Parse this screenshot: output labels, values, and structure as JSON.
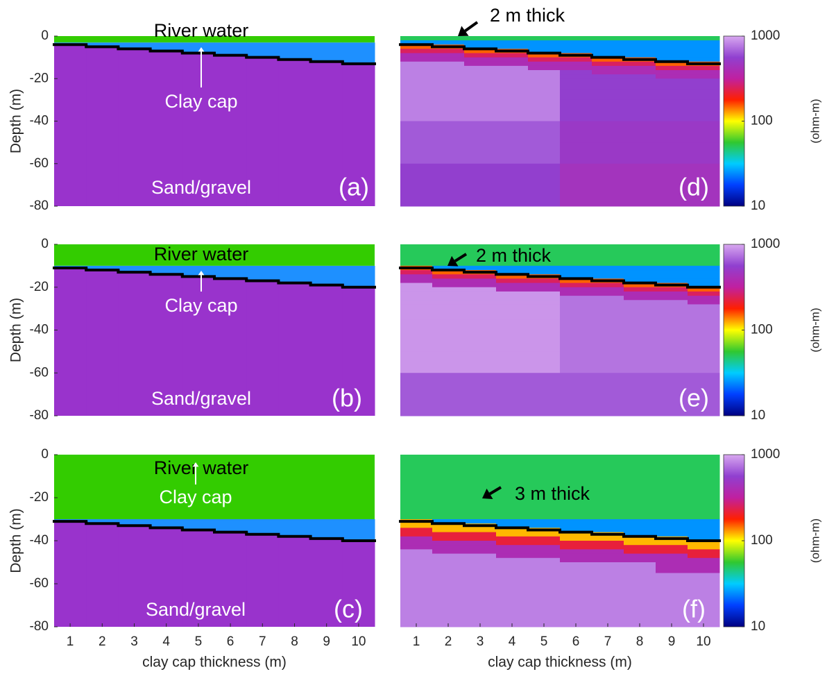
{
  "chart_data": [
    {
      "type": "section",
      "label": "(a)",
      "x": [
        1,
        2,
        3,
        4,
        5,
        6,
        7,
        8,
        9,
        10
      ],
      "xlim": [
        0.5,
        10.5
      ],
      "ylim": [
        -80,
        0
      ],
      "yticks": [
        0,
        -20,
        -40,
        -60,
        -80
      ],
      "ylabel": "Depth (m)",
      "water_depth": -3,
      "clay_bottom": [
        -4,
        -5,
        -6,
        -7,
        -8,
        -9,
        -10,
        -11,
        -12,
        -13
      ],
      "layers": [
        {
          "name": "River water",
          "color": "#33cc00"
        },
        {
          "name": "Clay cap",
          "color": "#1e90ff"
        },
        {
          "name": "Sand/gravel",
          "color": "#9933cc"
        }
      ]
    },
    {
      "type": "section",
      "label": "(b)",
      "x": [
        1,
        2,
        3,
        4,
        5,
        6,
        7,
        8,
        9,
        10
      ],
      "xlim": [
        0.5,
        10.5
      ],
      "ylim": [
        -80,
        0
      ],
      "yticks": [
        0,
        -20,
        -40,
        -60,
        -80
      ],
      "ylabel": "Depth (m)",
      "water_depth": -10,
      "clay_bottom": [
        -11,
        -12,
        -13,
        -14,
        -15,
        -16,
        -17,
        -18,
        -19,
        -20
      ],
      "layers": [
        {
          "name": "River water",
          "color": "#33cc00"
        },
        {
          "name": "Clay cap",
          "color": "#1e90ff"
        },
        {
          "name": "Sand/gravel",
          "color": "#9933cc"
        }
      ]
    },
    {
      "type": "section",
      "label": "(c)",
      "x": [
        1,
        2,
        3,
        4,
        5,
        6,
        7,
        8,
        9,
        10
      ],
      "xlim": [
        0.5,
        10.5
      ],
      "ylim": [
        -80,
        0
      ],
      "yticks": [
        0,
        -20,
        -40,
        -60,
        -80
      ],
      "ylabel": "Depth (m)",
      "xticks": [
        1,
        2,
        3,
        4,
        5,
        6,
        7,
        8,
        9,
        10
      ],
      "xlabel": "clay cap thickness (m)",
      "water_depth": -30,
      "clay_bottom": [
        -31,
        -32,
        -33,
        -34,
        -35,
        -36,
        -37,
        -38,
        -39,
        -40
      ],
      "layers": [
        {
          "name": "River water",
          "color": "#33cc00"
        },
        {
          "name": "Clay cap",
          "color": "#1e90ff"
        },
        {
          "name": "Sand/gravel",
          "color": "#9933cc"
        }
      ]
    },
    {
      "type": "heatmap",
      "label": "(d)",
      "annotation": "2 m thick",
      "x": [
        1,
        2,
        3,
        4,
        5,
        6,
        7,
        8,
        9,
        10
      ],
      "xlim": [
        0.5,
        10.5
      ],
      "ylim": [
        -80,
        0
      ],
      "depth_bins": [
        0,
        -2,
        -4,
        -6,
        -8,
        -10,
        -12,
        -14,
        -16,
        -18,
        -20,
        -25,
        -30,
        -40,
        -50,
        -60,
        -70,
        -80
      ],
      "values": [
        [
          50,
          25,
          150,
          250,
          400,
          400,
          800,
          800,
          800,
          800,
          800,
          800,
          800,
          650,
          650,
          550,
          550
        ],
        [
          50,
          25,
          150,
          250,
          400,
          400,
          800,
          800,
          800,
          800,
          800,
          800,
          800,
          650,
          650,
          550,
          550
        ],
        [
          50,
          25,
          25,
          150,
          250,
          400,
          400,
          800,
          800,
          800,
          800,
          800,
          800,
          650,
          650,
          550,
          550
        ],
        [
          50,
          25,
          25,
          150,
          250,
          400,
          400,
          800,
          800,
          800,
          800,
          800,
          800,
          650,
          650,
          550,
          550
        ],
        [
          50,
          25,
          25,
          25,
          150,
          250,
          400,
          400,
          800,
          800,
          800,
          800,
          800,
          650,
          650,
          550,
          550
        ],
        [
          50,
          25,
          25,
          25,
          150,
          250,
          400,
          400,
          550,
          550,
          550,
          550,
          550,
          500,
          500,
          450,
          450
        ],
        [
          50,
          25,
          25,
          25,
          25,
          150,
          250,
          400,
          400,
          550,
          550,
          550,
          550,
          500,
          500,
          450,
          450
        ],
        [
          50,
          25,
          25,
          25,
          25,
          150,
          250,
          400,
          400,
          550,
          550,
          550,
          550,
          500,
          500,
          450,
          450
        ],
        [
          50,
          25,
          25,
          25,
          25,
          25,
          150,
          250,
          400,
          400,
          550,
          550,
          550,
          500,
          500,
          450,
          450
        ],
        [
          50,
          25,
          25,
          25,
          25,
          25,
          150,
          250,
          400,
          400,
          550,
          550,
          550,
          500,
          500,
          450,
          450
        ]
      ],
      "colorbar": {
        "label": "(ohm-m)",
        "lim": [
          10,
          1000
        ],
        "ticks": [
          10,
          100,
          1000
        ],
        "log": true,
        "colors": [
          "#000080",
          "#0040ff",
          "#00ccff",
          "#30c830",
          "#ffff00",
          "#ff2000",
          "#c020a0",
          "#9040d0",
          "#d8a8f0"
        ]
      }
    },
    {
      "type": "heatmap",
      "label": "(e)",
      "annotation": "2 m thick",
      "x": [
        1,
        2,
        3,
        4,
        5,
        6,
        7,
        8,
        9,
        10
      ],
      "xlim": [
        0.5,
        10.5
      ],
      "ylim": [
        -80,
        0
      ],
      "depth_bins": [
        0,
        -10,
        -12,
        -14,
        -16,
        -18,
        -20,
        -22,
        -24,
        -26,
        -28,
        -30,
        -35,
        -40,
        -50,
        -60,
        -70,
        -80
      ],
      "values": [
        [
          50,
          150,
          250,
          400,
          400,
          900,
          900,
          900,
          900,
          900,
          900,
          900,
          900,
          900,
          900,
          650,
          650
        ],
        [
          50,
          25,
          150,
          250,
          400,
          400,
          900,
          900,
          900,
          900,
          900,
          900,
          900,
          900,
          900,
          650,
          650
        ],
        [
          50,
          25,
          150,
          250,
          400,
          400,
          900,
          900,
          900,
          900,
          900,
          900,
          900,
          900,
          900,
          650,
          650
        ],
        [
          50,
          25,
          25,
          150,
          250,
          400,
          400,
          900,
          900,
          900,
          900,
          900,
          900,
          900,
          900,
          650,
          650
        ],
        [
          50,
          25,
          25,
          150,
          250,
          400,
          400,
          900,
          900,
          900,
          900,
          900,
          900,
          900,
          900,
          650,
          650
        ],
        [
          50,
          25,
          25,
          25,
          150,
          250,
          400,
          400,
          750,
          750,
          750,
          750,
          750,
          750,
          750,
          650,
          650
        ],
        [
          50,
          25,
          25,
          25,
          150,
          250,
          400,
          400,
          750,
          750,
          750,
          750,
          750,
          750,
          750,
          650,
          650
        ],
        [
          50,
          25,
          25,
          25,
          25,
          150,
          250,
          400,
          400,
          750,
          750,
          750,
          750,
          750,
          750,
          650,
          650
        ],
        [
          50,
          25,
          25,
          25,
          25,
          150,
          250,
          400,
          400,
          750,
          750,
          750,
          750,
          750,
          750,
          650,
          650
        ],
        [
          50,
          25,
          25,
          25,
          25,
          25,
          150,
          250,
          400,
          400,
          750,
          750,
          750,
          750,
          750,
          650,
          650
        ]
      ],
      "colorbar": {
        "label": "(ohm-m)",
        "lim": [
          10,
          1000
        ],
        "ticks": [
          10,
          100,
          1000
        ],
        "log": true,
        "colors": [
          "#000080",
          "#0040ff",
          "#00ccff",
          "#30c830",
          "#ffff00",
          "#ff2000",
          "#c020a0",
          "#9040d0",
          "#d8a8f0"
        ]
      }
    },
    {
      "type": "heatmap",
      "label": "(f)",
      "annotation": "3 m thick",
      "x": [
        1,
        2,
        3,
        4,
        5,
        6,
        7,
        8,
        9,
        10
      ],
      "xlim": [
        0.5,
        10.5
      ],
      "ylim": [
        -80,
        0
      ],
      "xticks": [
        1,
        2,
        3,
        4,
        5,
        6,
        7,
        8,
        9,
        10
      ],
      "xlabel": "clay cap thickness (m)",
      "depth_bins": [
        0,
        -30,
        -32,
        -34,
        -36,
        -38,
        -40,
        -42,
        -44,
        -46,
        -48,
        -50,
        -55,
        -60,
        -70,
        -80
      ],
      "values": [
        [
          50,
          120,
          120,
          220,
          220,
          400,
          400,
          400,
          800,
          800,
          800,
          800,
          800,
          800,
          800
        ],
        [
          50,
          25,
          120,
          120,
          220,
          220,
          400,
          400,
          400,
          800,
          800,
          800,
          800,
          800,
          800
        ],
        [
          50,
          25,
          120,
          120,
          220,
          220,
          400,
          400,
          400,
          800,
          800,
          800,
          800,
          800,
          800
        ],
        [
          50,
          25,
          25,
          120,
          120,
          220,
          220,
          400,
          400,
          400,
          800,
          800,
          800,
          800,
          800
        ],
        [
          50,
          25,
          25,
          120,
          120,
          220,
          220,
          400,
          400,
          400,
          800,
          800,
          800,
          800,
          800
        ],
        [
          50,
          25,
          25,
          25,
          120,
          120,
          220,
          220,
          400,
          400,
          400,
          800,
          800,
          800,
          800
        ],
        [
          50,
          25,
          25,
          25,
          120,
          120,
          220,
          220,
          400,
          400,
          400,
          800,
          800,
          800,
          800
        ],
        [
          50,
          25,
          25,
          25,
          25,
          120,
          120,
          220,
          220,
          400,
          400,
          800,
          800,
          800,
          800
        ],
        [
          50,
          25,
          25,
          25,
          25,
          120,
          120,
          220,
          220,
          400,
          400,
          400,
          800,
          800,
          800
        ],
        [
          50,
          25,
          25,
          25,
          25,
          25,
          120,
          120,
          220,
          220,
          400,
          400,
          800,
          800,
          800
        ]
      ],
      "colorbar": {
        "label": "(ohm-m)",
        "lim": [
          10,
          1000
        ],
        "ticks": [
          10,
          100,
          1000
        ],
        "log": true,
        "colors": [
          "#000080",
          "#0040ff",
          "#00ccff",
          "#30c830",
          "#ffff00",
          "#ff2000",
          "#c020a0",
          "#9040d0",
          "#d8a8f0"
        ]
      }
    }
  ]
}
